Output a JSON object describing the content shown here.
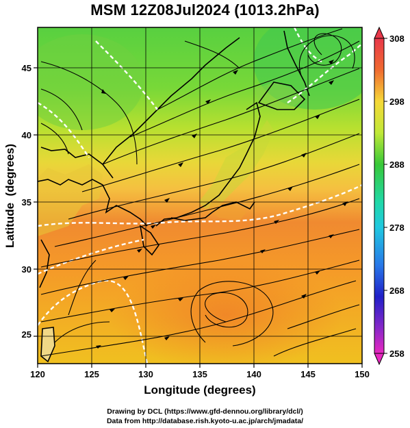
{
  "title": "MSM 12Z08Jul2024 (1013.2hPa)",
  "map": {
    "x_label": "Longitude (degrees)",
    "y_label": "Latitude  (degrees)",
    "lon_range": [
      120,
      150
    ],
    "lat_range": [
      22.5,
      47.5
    ],
    "lon_ticks": [
      "120",
      "125",
      "130",
      "135",
      "140",
      "145",
      "150"
    ],
    "lat_ticks": [
      "25",
      "30",
      "35",
      "40",
      "45"
    ],
    "field": "temperature (K)",
    "streamlines": "surface wind",
    "contour_color": "#ffffff"
  },
  "colorbar": {
    "min": 258,
    "max": 308,
    "labels": [
      "308",
      "298",
      "288",
      "278",
      "268",
      "258"
    ],
    "colors": [
      "#e8384a",
      "#f08a30",
      "#f5d838",
      "#b8e838",
      "#38c838",
      "#20d8c0",
      "#2878e8",
      "#2020c8",
      "#8828c8",
      "#e828c0"
    ]
  },
  "credits": {
    "line1": "Drawing by DCL (https://www.gfd-dennou.org/library/dcl/)",
    "line2": "Data from http://database.rish.kyoto-u.ac.jp/arch/jmadata/"
  }
}
